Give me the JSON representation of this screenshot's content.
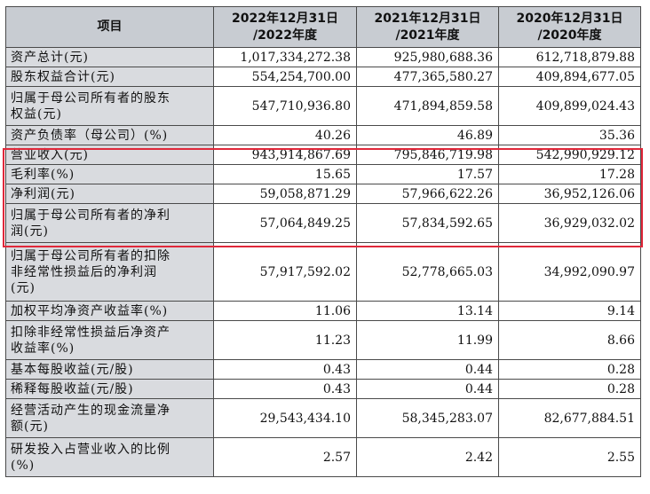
{
  "table": {
    "header": {
      "item": "项目",
      "col2022": [
        "2022年12月31日",
        "/2022年度"
      ],
      "col2021": [
        "2021年12月31日",
        "/2021年度"
      ],
      "col2020": [
        "2020年12月31日",
        "/2020年度"
      ]
    },
    "rows": [
      {
        "label": [
          "资产总计(元)"
        ],
        "v2022": "1,017,334,272.38",
        "v2021": "925,980,688.36",
        "v2020": "612,718,879.88"
      },
      {
        "label": [
          "股东权益合计(元)"
        ],
        "v2022": "554,254,700.00",
        "v2021": "477,365,580.27",
        "v2020": "409,894,677.05"
      },
      {
        "label": [
          "归属于母公司所有者的股东",
          "权益(元)"
        ],
        "v2022": "547,710,936.80",
        "v2021": "471,894,859.58",
        "v2020": "409,899,024.43"
      },
      {
        "label": [
          "资产负债率（母公司）(%)"
        ],
        "v2022": "40.26",
        "v2021": "46.89",
        "v2020": "35.36"
      },
      {
        "label": [
          "营业收入(元)"
        ],
        "v2022": "943,914,867.69",
        "v2021": "795,846,719.98",
        "v2020": "542,990,929.12"
      },
      {
        "label": [
          "毛利率(%)"
        ],
        "v2022": "15.65",
        "v2021": "17.57",
        "v2020": "17.28"
      },
      {
        "label": [
          "净利润(元)"
        ],
        "v2022": "59,058,871.29",
        "v2021": "57,966,622.26",
        "v2020": "36,952,126.06"
      },
      {
        "label": [
          "归属于母公司所有者的净利",
          "润(元)"
        ],
        "v2022": "57,064,849.25",
        "v2021": "57,834,592.65",
        "v2020": "36,929,032.02"
      },
      {
        "label": [
          "归属于母公司所有者的扣除",
          "非经常性损益后的净利润",
          "(元)"
        ],
        "v2022": "57,917,592.02",
        "v2021": "52,778,665.03",
        "v2020": "34,992,090.97"
      },
      {
        "label": [
          "加权平均净资产收益率(%)"
        ],
        "v2022": "11.06",
        "v2021": "13.14",
        "v2020": "9.14"
      },
      {
        "label": [
          "扣除非经常性损益后净资产",
          "收益率(%)"
        ],
        "v2022": "11.23",
        "v2021": "11.99",
        "v2020": "8.66"
      },
      {
        "label": [
          "基本每股收益(元/股)"
        ],
        "v2022": "0.43",
        "v2021": "0.44",
        "v2020": "0.28"
      },
      {
        "label": [
          "稀释每股收益(元/股)"
        ],
        "v2022": "0.43",
        "v2021": "0.44",
        "v2020": "0.28"
      },
      {
        "label": [
          "经营活动产生的现金流量净",
          "额(元)"
        ],
        "v2022": "29,543,434.10",
        "v2021": "58,345,283.07",
        "v2020": "82,677,884.51"
      },
      {
        "label": [
          "研发投入占营业收入的比例",
          "(%)"
        ],
        "v2022": "2.57",
        "v2021": "2.42",
        "v2020": "2.55"
      }
    ],
    "highlight_color": "#e0283a"
  }
}
